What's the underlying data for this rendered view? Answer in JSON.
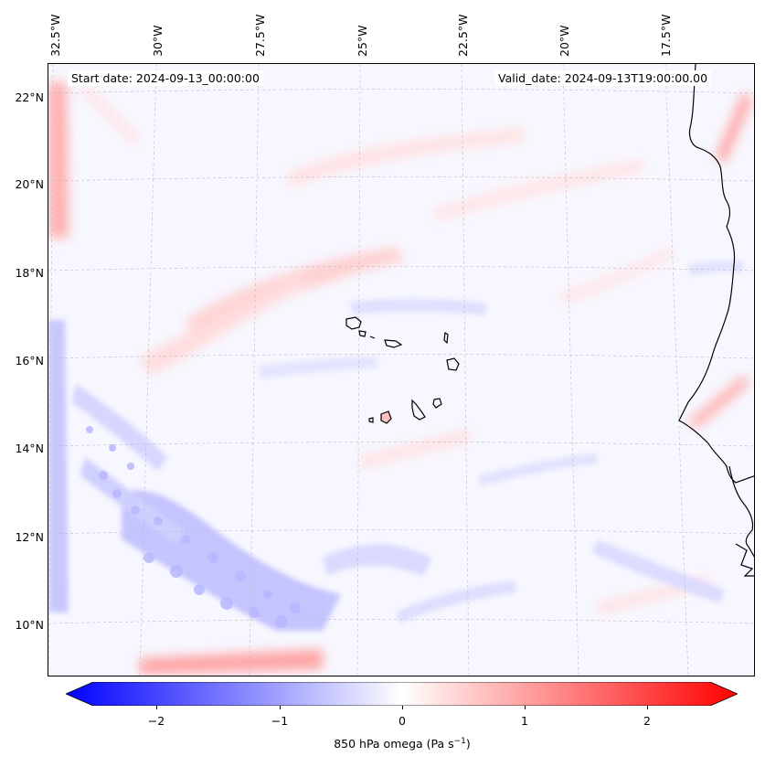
{
  "map": {
    "start_date": "Start date: 2024-09-13_00:00:00",
    "valid_date": "Valid_date: 2024-09-13T19:00:00.00",
    "longitude_labels": [
      "32.5°W",
      "30°W",
      "27.5°W",
      "25°W",
      "22.5°W",
      "20°W",
      "17.5°W"
    ],
    "latitude_labels": [
      "22°N",
      "20°N",
      "18°N",
      "16°N",
      "14°N",
      "12°N",
      "10°N"
    ],
    "coastline_color": "#000000",
    "gridline_color": "#bbbbbb"
  },
  "colorbar": {
    "label_prefix": "850 hPa omega (Pa s",
    "label_exp": "−1",
    "label_suffix": ")",
    "ticks": [
      "−2",
      "−1",
      "0",
      "1",
      "2"
    ],
    "min_color": "#0000ff",
    "mid_color": "#ffffff",
    "max_color": "#ff0000",
    "range": [
      -2.75,
      2.75
    ]
  }
}
